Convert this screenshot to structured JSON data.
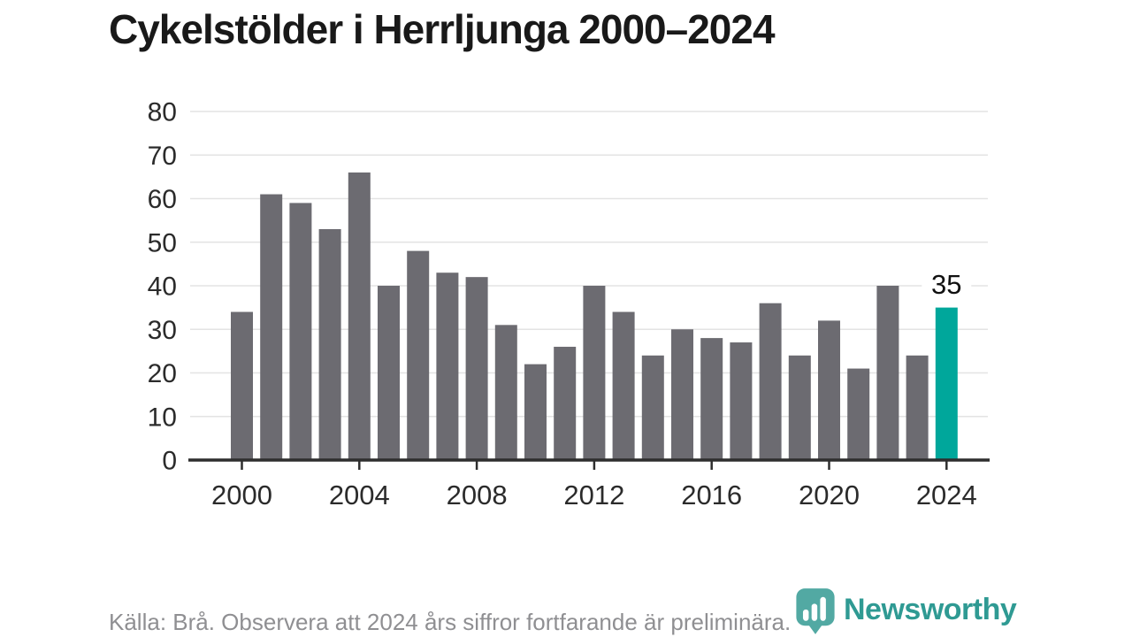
{
  "title": "Cykelstölder i Herrljunga 2000–2024",
  "source_note": "Källa: Brå. Observera att 2024 års siffror fortfarande är preliminära.",
  "branding": {
    "name": "Newsworthy",
    "icon": "newsworthy-pin-barchart-icon",
    "wordmark_color": "#2f9a93",
    "icon_color": "#43a29b"
  },
  "chart_data": {
    "type": "bar",
    "title": "Cykelstölder i Herrljunga 2000–2024",
    "x": [
      2000,
      2001,
      2002,
      2003,
      2004,
      2005,
      2006,
      2007,
      2008,
      2009,
      2010,
      2011,
      2012,
      2013,
      2014,
      2015,
      2016,
      2017,
      2018,
      2019,
      2020,
      2021,
      2022,
      2023,
      2024
    ],
    "values": [
      34,
      61,
      59,
      53,
      66,
      40,
      48,
      43,
      42,
      31,
      22,
      26,
      40,
      34,
      24,
      30,
      28,
      27,
      36,
      24,
      32,
      21,
      40,
      24,
      35
    ],
    "highlight_index": 24,
    "highlight_value_label": "35",
    "xlabel": "",
    "ylabel": "",
    "ylim": [
      0,
      80
    ],
    "yticks": [
      0,
      10,
      20,
      30,
      40,
      50,
      60,
      70,
      80
    ],
    "xticks": [
      2000,
      2004,
      2008,
      2012,
      2016,
      2020,
      2024
    ],
    "grid": true,
    "legend": "none",
    "bar_color": "#6c6b71",
    "highlight_color": "#00a79b",
    "axis_color": "#2e2e2e",
    "gridline_color": "#e3e3e3",
    "tick_label_color": "#2b2b2b",
    "value_label_color": "#111111"
  }
}
